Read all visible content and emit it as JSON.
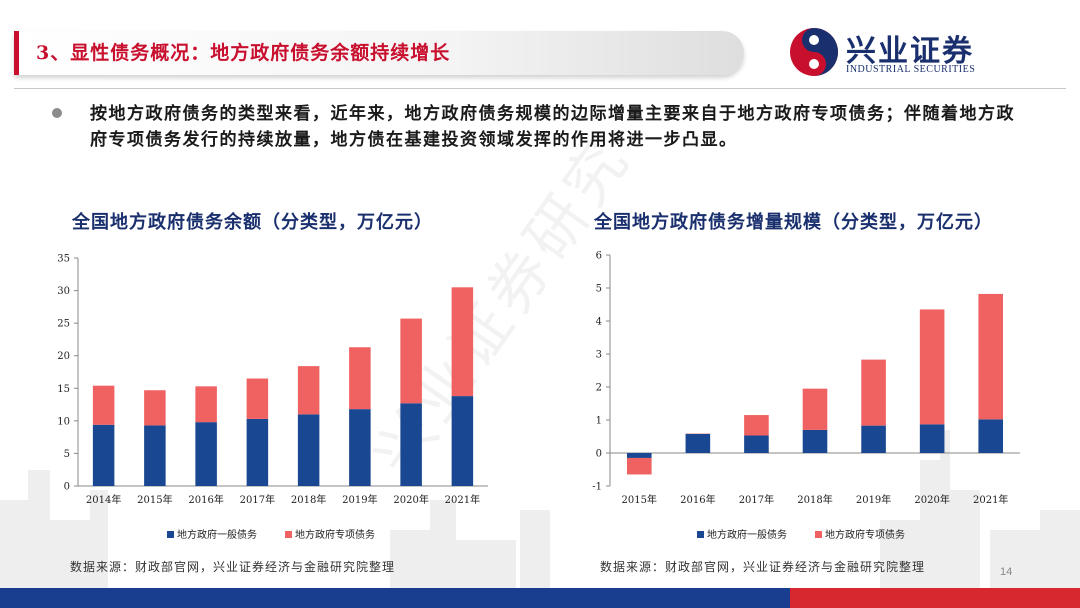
{
  "header": {
    "title": "3、显性债务概况：地方政府债务余额持续增长",
    "logo_name": "兴业证券",
    "logo_en": "INDUSTRIAL SECURITIES",
    "brand_colors": {
      "red": "#c8102e",
      "navy": "#1a2f6e",
      "blue": "#1a3e8f",
      "bar_red": "#f06262"
    }
  },
  "bullet": {
    "text": "按地方政府债务的类型来看，近年来，地方政府债务规模的边际增量主要来自于地方政府专项债务；伴随着地方政府专项债务发行的持续放量，地方债在基建投资领域发挥的作用将进一步凸显。"
  },
  "watermark": "兴业证券研究",
  "page_number": "14",
  "chart_data": [
    {
      "type": "bar",
      "stacked": true,
      "title": "全国地方政府债务余额（分类型，万亿元）",
      "categories": [
        "2014年",
        "2015年",
        "2016年",
        "2017年",
        "2018年",
        "2019年",
        "2020年",
        "2021年"
      ],
      "series": [
        {
          "name": "地方政府一般债务",
          "color": "#1a4791",
          "values": [
            9.4,
            9.3,
            9.8,
            10.3,
            11.0,
            11.8,
            12.7,
            13.8
          ]
        },
        {
          "name": "地方政府专项债务",
          "color": "#f06262",
          "values": [
            6.0,
            5.4,
            5.5,
            6.2,
            7.4,
            9.5,
            13.0,
            16.7
          ]
        }
      ],
      "ylim": [
        0,
        35
      ],
      "yticks": [
        0,
        5,
        10,
        15,
        20,
        25,
        30,
        35
      ],
      "legend_position": "bottom",
      "grid": false,
      "source": "数据来源：财政部官网，兴业证券经济与金融研究院整理"
    },
    {
      "type": "bar",
      "stacked": true,
      "title": "全国地方政府债务增量规模（分类型，万亿元）",
      "categories": [
        "2015年",
        "2016年",
        "2017年",
        "2018年",
        "2019年",
        "2020年",
        "2021年"
      ],
      "series": [
        {
          "name": "地方政府一般债务",
          "color": "#1a4791",
          "values": [
            -0.15,
            0.58,
            0.53,
            0.7,
            0.83,
            0.87,
            1.02
          ]
        },
        {
          "name": "地方政府专项债务",
          "color": "#f06262",
          "values": [
            -0.5,
            0.01,
            0.62,
            1.25,
            2.0,
            3.48,
            3.8
          ]
        }
      ],
      "ylim": [
        -1,
        6
      ],
      "yticks": [
        -1,
        0,
        1,
        2,
        3,
        4,
        5,
        6
      ],
      "legend_position": "bottom",
      "grid": false,
      "source": "数据来源：财政部官网，兴业证券经济与金融研究院整理"
    }
  ]
}
